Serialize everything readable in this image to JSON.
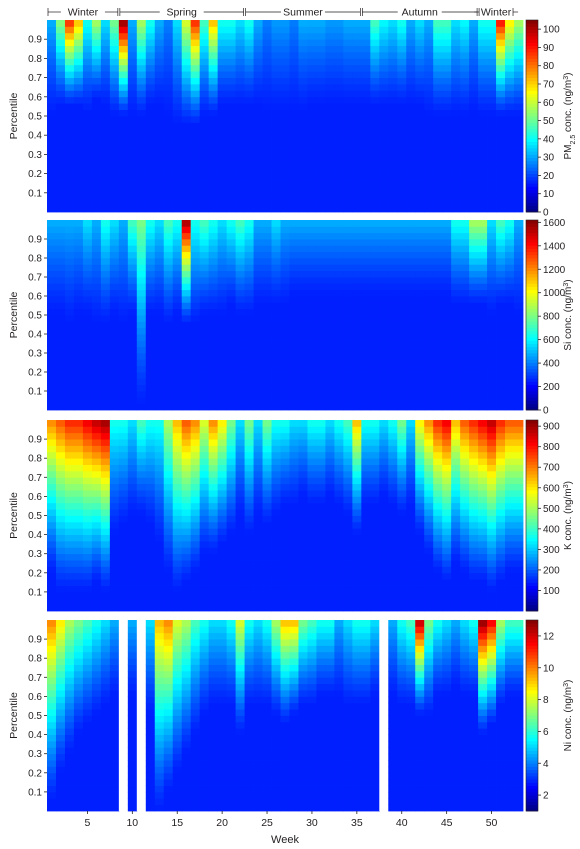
{
  "chart_data": [
    {
      "type": "heatmap",
      "panel": "pm25",
      "clabel_parts": [
        "PM",
        "2.5",
        " conc. (ng/m",
        "3",
        ")"
      ],
      "cbar_ticks": [
        0,
        10,
        20,
        30,
        40,
        50,
        60,
        70,
        80,
        90,
        100
      ],
      "cmax": 105,
      "ylabel": "Percentile",
      "yticks": [
        "0.1",
        "0.2",
        "0.3",
        "0.4",
        "0.5",
        "0.6",
        "0.7",
        "0.8",
        "0.9"
      ],
      "intensity": [
        0.3,
        0.52,
        0.85,
        0.7,
        0.4,
        0.55,
        0.35,
        0.5,
        1.0,
        0.3,
        0.55,
        0.4,
        0.3,
        0.25,
        0.35,
        0.6,
        0.85,
        0.45,
        0.7,
        0.4,
        0.4,
        0.35,
        0.4,
        0.3,
        0.25,
        0.28,
        0.28,
        0.25,
        0.3,
        0.3,
        0.3,
        0.28,
        0.28,
        0.3,
        0.3,
        0.3,
        0.45,
        0.38,
        0.35,
        0.4,
        0.3,
        0.35,
        0.3,
        0.45,
        0.45,
        0.35,
        0.38,
        0.3,
        0.4,
        0.4,
        0.88,
        0.65,
        0.55
      ],
      "threshold": [
        0.5,
        0.55,
        0.55,
        0.55,
        0.52,
        0.58,
        0.55,
        0.5,
        0.5,
        0.5,
        0.5,
        0.55,
        0.55,
        0.5,
        0.45,
        0.45,
        0.45,
        0.5,
        0.5,
        0.55,
        0.55,
        0.55,
        0.55,
        0.55,
        0.52,
        0.52,
        0.52,
        0.52,
        0.52,
        0.55,
        0.55,
        0.55,
        0.55,
        0.55,
        0.55,
        0.55,
        0.55,
        0.55,
        0.55,
        0.55,
        0.55,
        0.55,
        0.5,
        0.5,
        0.5,
        0.5,
        0.5,
        0.52,
        0.5,
        0.5,
        0.5,
        0.5,
        0.5
      ]
    },
    {
      "type": "heatmap",
      "panel": "si",
      "clabel_parts": [
        "Si conc. (ng/m",
        "3",
        ")"
      ],
      "cbar_ticks": [
        0,
        200,
        400,
        600,
        800,
        1000,
        1200,
        1400,
        1600
      ],
      "cmax": 1620,
      "ylabel": "Percentile",
      "yticks": [
        "0.1",
        "0.2",
        "0.3",
        "0.4",
        "0.5",
        "0.6",
        "0.7",
        "0.8",
        "0.9"
      ],
      "intensity": [
        0.3,
        0.3,
        0.3,
        0.3,
        0.35,
        0.3,
        0.4,
        0.35,
        0.3,
        0.45,
        0.5,
        0.4,
        0.35,
        0.45,
        0.4,
        0.98,
        0.4,
        0.45,
        0.4,
        0.35,
        0.4,
        0.45,
        0.4,
        0.3,
        0.3,
        0.35,
        0.3,
        0.3,
        0.3,
        0.3,
        0.3,
        0.3,
        0.3,
        0.3,
        0.3,
        0.3,
        0.3,
        0.3,
        0.3,
        0.3,
        0.3,
        0.3,
        0.3,
        0.3,
        0.3,
        0.4,
        0.4,
        0.55,
        0.55,
        0.35,
        0.45,
        0.4,
        0.3
      ],
      "threshold": [
        0.5,
        0.5,
        0.45,
        0.5,
        0.5,
        0.45,
        0.45,
        0.5,
        0.45,
        0.5,
        0.02,
        0.5,
        0.5,
        0.45,
        0.5,
        0.45,
        0.45,
        0.5,
        0.5,
        0.5,
        0.55,
        0.5,
        0.5,
        0.55,
        0.55,
        0.55,
        0.55,
        0.6,
        0.6,
        0.6,
        0.6,
        0.6,
        0.6,
        0.6,
        0.6,
        0.6,
        0.6,
        0.6,
        0.6,
        0.6,
        0.6,
        0.6,
        0.6,
        0.6,
        0.6,
        0.55,
        0.55,
        0.55,
        0.55,
        0.5,
        0.55,
        0.55,
        0.5
      ]
    },
    {
      "type": "heatmap",
      "panel": "k",
      "clabel_parts": [
        "K conc. (ng/m",
        "3",
        ")"
      ],
      "cbar_ticks": [
        100,
        200,
        300,
        400,
        500,
        600,
        700,
        800,
        900
      ],
      "cmax": 930,
      "ylabel": "Percentile",
      "yticks": [
        "0.1",
        "0.2",
        "0.3",
        "0.4",
        "0.5",
        "0.6",
        "0.7",
        "0.8",
        "0.9"
      ],
      "intensity": [
        0.75,
        0.8,
        0.85,
        0.85,
        0.9,
        0.95,
        0.98,
        0.4,
        0.4,
        0.35,
        0.45,
        0.4,
        0.4,
        0.55,
        0.7,
        0.8,
        0.75,
        0.6,
        0.75,
        0.65,
        0.5,
        0.35,
        0.5,
        0.35,
        0.5,
        0.4,
        0.4,
        0.35,
        0.35,
        0.4,
        0.4,
        0.35,
        0.4,
        0.45,
        0.7,
        0.4,
        0.4,
        0.35,
        0.4,
        0.5,
        0.35,
        0.65,
        0.75,
        0.85,
        0.9,
        0.7,
        0.8,
        0.85,
        0.9,
        0.95,
        0.85,
        0.8,
        0.8
      ],
      "threshold": [
        0.2,
        0.1,
        0.1,
        0.1,
        0.1,
        0.15,
        0.1,
        0.4,
        0.45,
        0.5,
        0.5,
        0.45,
        0.35,
        0.2,
        0.1,
        0.15,
        0.2,
        0.3,
        0.3,
        0.35,
        0.4,
        0.5,
        0.4,
        0.5,
        0.45,
        0.5,
        0.55,
        0.55,
        0.6,
        0.55,
        0.55,
        0.6,
        0.55,
        0.5,
        0.4,
        0.55,
        0.55,
        0.6,
        0.55,
        0.5,
        0.55,
        0.4,
        0.3,
        0.2,
        0.15,
        0.25,
        0.2,
        0.15,
        0.15,
        0.1,
        0.15,
        0.2,
        0.2
      ]
    },
    {
      "type": "heatmap",
      "panel": "ni",
      "clabel_parts": [
        "Ni conc. (ng/m",
        "3",
        ")"
      ],
      "cbar_ticks": [
        2,
        4,
        6,
        8,
        10,
        12
      ],
      "cmin": 1,
      "cmax": 13,
      "ylabel": "Percentile",
      "yticks": [
        "0.1",
        "0.2",
        "0.3",
        "0.4",
        "0.5",
        "0.6",
        "0.7",
        "0.8",
        "0.9"
      ],
      "xlabel": "Week",
      "xticks": [
        5,
        10,
        15,
        20,
        25,
        30,
        35,
        40,
        45,
        50
      ],
      "missing_weeks": [
        9,
        11,
        38
      ],
      "intensity": [
        0.75,
        0.65,
        0.55,
        0.5,
        0.45,
        0.4,
        0.35,
        0.3,
        0.0,
        0.3,
        0.0,
        0.35,
        0.7,
        0.75,
        0.6,
        0.55,
        0.45,
        0.4,
        0.35,
        0.35,
        0.4,
        0.6,
        0.4,
        0.35,
        0.4,
        0.55,
        0.7,
        0.7,
        0.5,
        0.45,
        0.4,
        0.4,
        0.3,
        0.35,
        0.4,
        0.4,
        0.35,
        0.0,
        0.3,
        0.4,
        0.45,
        0.95,
        0.5,
        0.4,
        0.35,
        0.3,
        0.35,
        0.4,
        1.0,
        0.9,
        0.55,
        0.45,
        0.45
      ],
      "threshold": [
        0.05,
        0.2,
        0.3,
        0.4,
        0.45,
        0.5,
        0.55,
        0.6,
        1.0,
        0.6,
        1.0,
        0.5,
        0.0,
        0.1,
        0.2,
        0.3,
        0.4,
        0.5,
        0.55,
        0.55,
        0.55,
        0.4,
        0.55,
        0.55,
        0.55,
        0.5,
        0.45,
        0.5,
        0.55,
        0.55,
        0.6,
        0.6,
        0.6,
        0.55,
        0.55,
        0.55,
        0.6,
        1.0,
        0.6,
        0.55,
        0.55,
        0.5,
        0.5,
        0.6,
        0.6,
        0.65,
        0.6,
        0.6,
        0.4,
        0.45,
        0.55,
        0.6,
        0.6
      ]
    }
  ],
  "seasons": [
    {
      "label": "Winter",
      "from": 1,
      "to": 9
    },
    {
      "label": "Spring",
      "from": 9,
      "to": 23
    },
    {
      "label": "Summer",
      "from": 23,
      "to": 36
    },
    {
      "label": "Autumn",
      "from": 36,
      "to": 49
    },
    {
      "label": "Winter",
      "from": 49,
      "to": 53
    }
  ]
}
